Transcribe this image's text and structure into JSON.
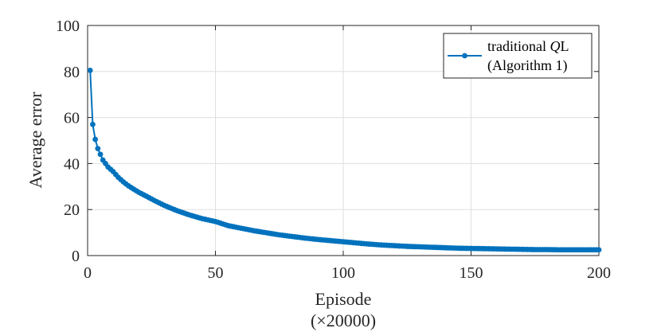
{
  "chart_data": {
    "type": "line",
    "xlabel": "Episode",
    "xlabel_unit": "(×20000)",
    "ylabel": "Average error",
    "xlim": [
      0,
      200
    ],
    "ylim": [
      0,
      100
    ],
    "xticks": [
      0,
      50,
      100,
      150,
      200
    ],
    "yticks": [
      0,
      20,
      40,
      60,
      80,
      100
    ],
    "xtick_labels": [
      "0",
      "50",
      "100",
      "150",
      "200"
    ],
    "ytick_labels": [
      "0",
      "20",
      "40",
      "60",
      "80",
      "100"
    ],
    "grid": true,
    "legend": {
      "placement": "top-right",
      "label_line1": "traditional QL",
      "label_line1_plain": "traditional ",
      "label_line1_italic": "Q",
      "label_line1_suffix": "L",
      "label_line2": "(Algorithm 1)"
    },
    "series": [
      {
        "name": "traditional QL (Algorithm 1)",
        "color": "#0072BD",
        "x": [
          1,
          2,
          3,
          4,
          5,
          6,
          7,
          8,
          9,
          10,
          12,
          14,
          16,
          18,
          20,
          23,
          26,
          30,
          35,
          40,
          45,
          50,
          55,
          60,
          65,
          70,
          75,
          80,
          85,
          90,
          95,
          100,
          105,
          110,
          115,
          120,
          125,
          130,
          135,
          140,
          145,
          150,
          155,
          160,
          165,
          170,
          175,
          180,
          185,
          190,
          195,
          200
        ],
        "y": [
          80.5,
          57.0,
          50.5,
          46.5,
          44.0,
          41.5,
          40.0,
          38.5,
          37.5,
          36.5,
          34.0,
          32.0,
          30.3,
          28.9,
          27.5,
          25.8,
          24.0,
          21.8,
          19.5,
          17.6,
          16.0,
          14.8,
          13.0,
          11.9,
          10.8,
          9.9,
          9.0,
          8.3,
          7.6,
          7.0,
          6.5,
          6.0,
          5.5,
          5.0,
          4.6,
          4.3,
          4.0,
          3.8,
          3.6,
          3.4,
          3.2,
          3.1,
          3.0,
          2.9,
          2.8,
          2.7,
          2.6,
          2.6,
          2.5,
          2.5,
          2.5,
          2.5
        ]
      }
    ]
  }
}
